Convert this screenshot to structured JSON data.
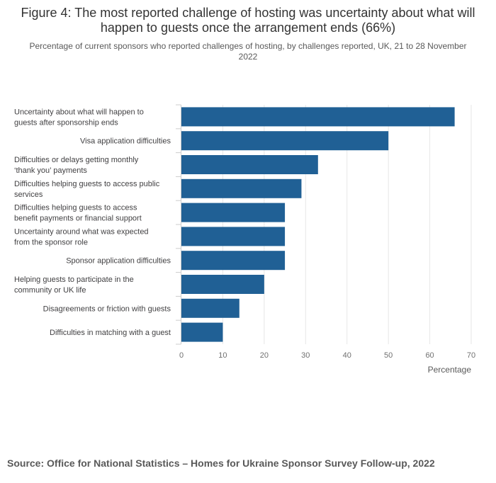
{
  "chart_data": {
    "type": "bar",
    "orientation": "horizontal",
    "title": "Figure 4: The most reported challenge of hosting was uncertainty about what will happen to guests once the arrangement ends (66%)",
    "subtitle": "Percentage of current sponsors who reported challenges of hosting, by challenges reported, UK, 21 to 28 November 2022",
    "xlabel": "Percentage",
    "ylabel": "",
    "xlim": [
      0,
      70
    ],
    "xticks": [
      0,
      10,
      20,
      30,
      40,
      50,
      60,
      70
    ],
    "grid": true,
    "bar_color": "#206095",
    "categories": [
      [
        "Uncertainty about what will happen to",
        "guests after sponsorship ends"
      ],
      [
        "Visa application difficulties"
      ],
      [
        "Difficulties or delays getting monthly",
        "‘thank you’ payments"
      ],
      [
        "Difficulties helping guests to access public",
        "services"
      ],
      [
        "Difficulties helping guests to access",
        "benefit payments or financial support"
      ],
      [
        "Uncertainty around what was expected",
        "from the sponsor role"
      ],
      [
        "Sponsor application difficulties"
      ],
      [
        "Helping guests to participate in the",
        "community or UK life"
      ],
      [
        "Disagreements or friction with guests"
      ],
      [
        "Difficulties in matching with a guest"
      ]
    ],
    "values": [
      66,
      50,
      33,
      29,
      25,
      25,
      25,
      20,
      14,
      10
    ]
  },
  "source": "Source: Office for National Statistics – Homes for Ukraine Sponsor Survey Follow-up, 2022"
}
